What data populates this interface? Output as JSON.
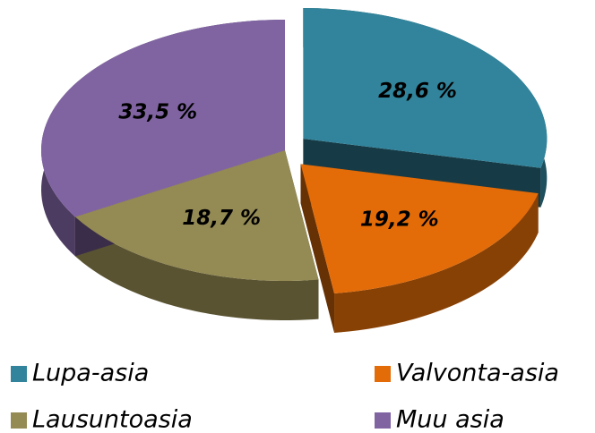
{
  "chart_data": {
    "type": "pie",
    "three_d": true,
    "categories": [
      "Lupa-asia",
      "Valvonta-asia",
      "Lausuntoasia",
      "Muu asia"
    ],
    "values": [
      28.6,
      19.2,
      18.7,
      33.5
    ],
    "value_labels": [
      "28,6 %",
      "19,2 %",
      "18,7 %",
      "33,5 %"
    ],
    "colors": [
      "#31849b",
      "#e36c09",
      "#948a54",
      "#8064a2"
    ],
    "exploded": [
      true,
      true,
      false,
      false
    ],
    "legend": "bottom"
  }
}
